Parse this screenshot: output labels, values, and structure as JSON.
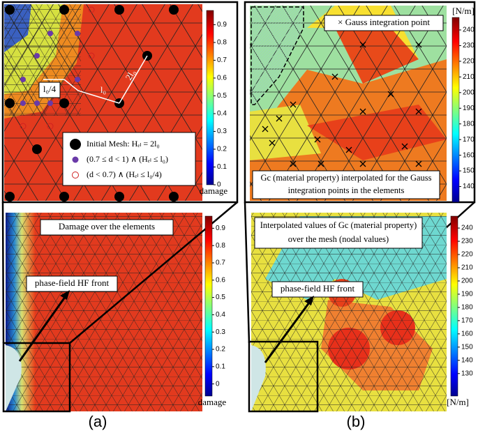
{
  "panel_a": {
    "label": "(a)",
    "top": {
      "colorbar": {
        "clim": [
          0,
          0.98
        ],
        "ticks": [
          0,
          0.1,
          0.2,
          0.3,
          0.4,
          0.5,
          0.6,
          0.7,
          0.8,
          0.9
        ],
        "label": "damage"
      },
      "annotations": [
        "l₀/4",
        "l₀",
        "2l₀"
      ],
      "legend": [
        "Initial Mesh: Hₑₗ = 2l₀",
        "(0.7 ≤ d < 1) ∧ (Hₑₗ ≤ l₀)",
        "(d < 0.7) ∧ (Hₑₗ ≤ l₀/4)"
      ]
    },
    "bottom": {
      "title": "Damage over the elements",
      "arrow_label": "phase-field HF front",
      "colorbar": {
        "clim": [
          -0.07,
          0.97
        ],
        "ticks": [
          0,
          0.1,
          0.2,
          0.3,
          0.4,
          0.5,
          0.6,
          0.7,
          0.8,
          0.9
        ],
        "label": "damage"
      }
    }
  },
  "panel_b": {
    "label": "(b)",
    "top": {
      "colorbar": {
        "clim": [
          130,
          248
        ],
        "ticks": [
          140,
          150,
          160,
          170,
          180,
          190,
          200,
          210,
          220,
          230,
          240
        ],
        "label": "[N/m]"
      },
      "legend": "× Gauss integration point",
      "caption": "Gc (material property) interpolated for the Gauss integration points in the elements"
    },
    "bottom": {
      "title": "Interpolated values of Gc (material property) over the mesh (nodal values)",
      "arrow_label": "phase-field HF front",
      "colorbar": {
        "clim": [
          113,
          249
        ],
        "ticks": [
          130,
          140,
          150,
          160,
          170,
          180,
          190,
          200,
          210,
          220,
          230,
          240
        ],
        "label": "[N/m]"
      }
    }
  }
}
